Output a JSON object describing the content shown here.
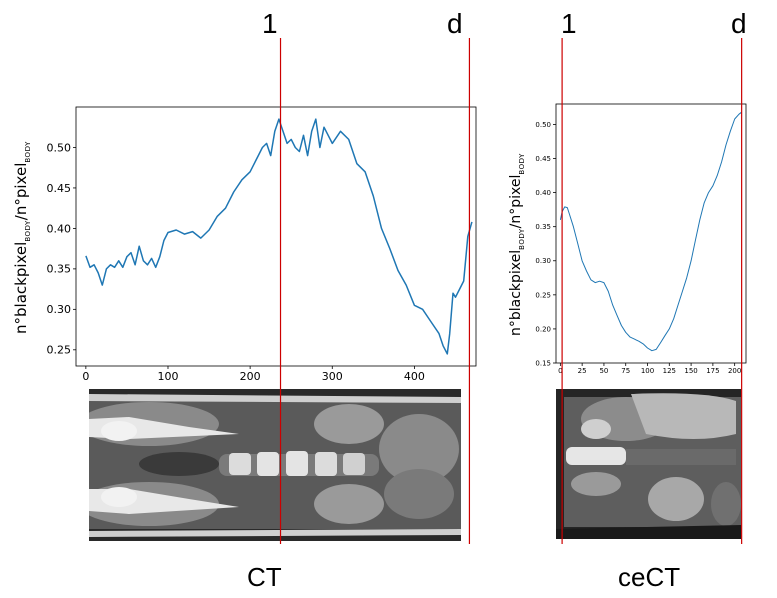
{
  "markers": {
    "start": "1",
    "end": "d"
  },
  "captions": {
    "left": "CT",
    "right": "ceCT"
  },
  "ylabel_parts": {
    "a": "n°blackpixel",
    "sub1": "BODY",
    "b": "/n°pixel",
    "sub2": "BODY"
  },
  "colors": {
    "line": "#1f77b4",
    "marker": "#cc0000",
    "axis": "#000000"
  },
  "chart_data": [
    {
      "type": "line",
      "title": "",
      "xlabel": "",
      "ylabel": "n°blackpixel BODY /n°pixel BODY",
      "xlim": [
        -12,
        475
      ],
      "ylim": [
        0.23,
        0.55
      ],
      "xticks": [
        0,
        100,
        200,
        300,
        400
      ],
      "yticks": [
        0.25,
        0.3,
        0.35,
        0.4,
        0.45,
        0.5
      ],
      "ytick_labels": [
        "0.25",
        "0.30",
        "0.35",
        "0.40",
        "0.45",
        "0.50"
      ],
      "markers_x": [
        237,
        467
      ],
      "x": [
        0,
        5,
        10,
        15,
        20,
        25,
        30,
        35,
        40,
        45,
        50,
        55,
        60,
        65,
        70,
        75,
        80,
        85,
        90,
        95,
        100,
        110,
        120,
        130,
        140,
        150,
        160,
        170,
        180,
        190,
        200,
        210,
        215,
        220,
        225,
        230,
        235,
        240,
        245,
        250,
        255,
        260,
        265,
        270,
        275,
        280,
        285,
        290,
        300,
        310,
        320,
        330,
        340,
        350,
        360,
        370,
        380,
        390,
        400,
        410,
        420,
        430,
        435,
        440,
        443,
        447,
        450,
        455,
        460,
        465,
        470
      ],
      "y": [
        0.366,
        0.352,
        0.355,
        0.345,
        0.33,
        0.35,
        0.355,
        0.352,
        0.36,
        0.352,
        0.365,
        0.37,
        0.355,
        0.378,
        0.36,
        0.355,
        0.363,
        0.352,
        0.365,
        0.385,
        0.395,
        0.398,
        0.393,
        0.396,
        0.388,
        0.398,
        0.415,
        0.425,
        0.445,
        0.46,
        0.47,
        0.49,
        0.5,
        0.505,
        0.49,
        0.52,
        0.535,
        0.52,
        0.505,
        0.51,
        0.5,
        0.495,
        0.515,
        0.49,
        0.52,
        0.535,
        0.5,
        0.525,
        0.505,
        0.52,
        0.51,
        0.48,
        0.47,
        0.44,
        0.4,
        0.375,
        0.348,
        0.33,
        0.305,
        0.3,
        0.285,
        0.27,
        0.255,
        0.245,
        0.27,
        0.32,
        0.315,
        0.325,
        0.335,
        0.39,
        0.408
      ]
    },
    {
      "type": "line",
      "title": "",
      "xlabel": "",
      "ylabel": "n°blackpixel BODY /n°pixel BODY",
      "xlim": [
        -5,
        213
      ],
      "ylim": [
        0.15,
        0.53
      ],
      "xticks": [
        0,
        25,
        50,
        75,
        100,
        125,
        150,
        175,
        200
      ],
      "yticks": [
        0.15,
        0.2,
        0.25,
        0.3,
        0.35,
        0.4,
        0.45,
        0.5
      ],
      "ytick_labels": [
        "0.15",
        "0.20",
        "0.25",
        "0.30",
        "0.35",
        "0.40",
        "0.45",
        "0.50"
      ],
      "markers_x": [
        2,
        208
      ],
      "x": [
        0,
        2,
        5,
        8,
        10,
        15,
        20,
        25,
        30,
        35,
        40,
        45,
        50,
        55,
        60,
        65,
        70,
        75,
        80,
        85,
        90,
        95,
        100,
        105,
        110,
        115,
        120,
        125,
        130,
        135,
        140,
        145,
        150,
        155,
        160,
        165,
        170,
        175,
        180,
        185,
        190,
        195,
        200,
        205,
        208
      ],
      "y": [
        0.36,
        0.372,
        0.379,
        0.378,
        0.37,
        0.35,
        0.325,
        0.3,
        0.285,
        0.272,
        0.268,
        0.27,
        0.268,
        0.255,
        0.235,
        0.22,
        0.205,
        0.195,
        0.188,
        0.185,
        0.182,
        0.178,
        0.172,
        0.168,
        0.17,
        0.18,
        0.19,
        0.2,
        0.215,
        0.235,
        0.255,
        0.275,
        0.3,
        0.33,
        0.36,
        0.385,
        0.4,
        0.41,
        0.425,
        0.445,
        0.47,
        0.49,
        0.508,
        0.515,
        0.518
      ]
    }
  ]
}
